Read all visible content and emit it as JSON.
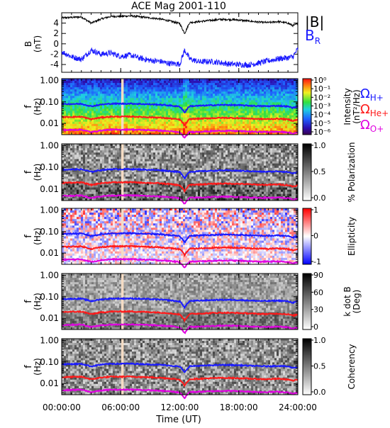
{
  "title": "ACE Mag 2001-110",
  "xlabel": "Time (UT)",
  "x_ticks": [
    "00:00:00",
    "06:00:00",
    "12:00:00",
    "18:00:00",
    "24:00:00"
  ],
  "legend_b": [
    {
      "text": "|B|",
      "color": "#000000"
    },
    {
      "text": "B",
      "sub": "R",
      "color": "#1a1aff"
    }
  ],
  "legend_omega": [
    {
      "text": "Ω",
      "sub": "H+",
      "color": "#1a1aff"
    },
    {
      "text": "Ω",
      "sub": "He+",
      "color": "#ff1a1a"
    },
    {
      "text": "Ω",
      "sub": "O+",
      "color": "#e000e0"
    }
  ],
  "colors": {
    "b_total": "#000000",
    "b_r": "#1a1aff",
    "h_plus": "#1a1aff",
    "he_plus": "#ff1a1a",
    "o_plus": "#e000e0",
    "gap": "#f5dcc4"
  },
  "chart_data": [
    {
      "type": "line",
      "panel": "magnetic-field",
      "ylabel": "B",
      "yunit": "(nT)",
      "ylim": [
        -5.5,
        6
      ],
      "y_ticks": [
        "4",
        "2",
        "0",
        "-2",
        "-4"
      ],
      "x_hours": [
        0,
        1,
        2,
        3,
        4,
        5,
        6,
        7,
        8,
        9,
        10,
        11,
        12,
        12.5,
        13,
        14,
        15,
        16,
        17,
        18,
        19,
        20,
        21,
        22,
        23,
        23.5,
        24
      ],
      "series": [
        {
          "name": "|B|",
          "values": [
            5.0,
            5.1,
            5.2,
            4.0,
            4.8,
            5.3,
            5.3,
            5.4,
            5.2,
            5.0,
            4.8,
            4.4,
            3.9,
            2.0,
            4.1,
            4.3,
            4.5,
            4.7,
            4.7,
            4.6,
            4.4,
            4.2,
            4.1,
            4.3,
            4.0,
            3.5,
            3.9
          ]
        },
        {
          "name": "B_R",
          "values": [
            -1.5,
            -2.5,
            -3.0,
            -1.2,
            -2.0,
            -1.8,
            -2.4,
            -2.2,
            -2.8,
            -3.2,
            -3.4,
            -3.8,
            -3.9,
            -1.2,
            -2.9,
            -3.5,
            -3.4,
            -3.6,
            -3.9,
            -4.0,
            -4.1,
            -3.7,
            -3.3,
            -2.9,
            -2.7,
            -2.5,
            -1.0
          ]
        }
      ]
    },
    {
      "type": "heatmap",
      "panel": "intensity",
      "ylabel": "f",
      "yunit": "(Hz)",
      "ylim": [
        0.003,
        1.2
      ],
      "log_y": true,
      "y_ticks": [
        "1.00",
        "0.10",
        "0.01"
      ],
      "colorbar_label": "Intensity",
      "colorbar_unit": "(nT²/Hz)",
      "colorbar_ticks": [
        "10⁰",
        "10⁻¹",
        "10⁻²",
        "10⁻³",
        "10⁻⁴",
        "10⁻⁵",
        "10⁻⁶"
      ],
      "colorbar_range": [
        1e-06,
        1
      ],
      "log_colorbar": true
    },
    {
      "type": "heatmap",
      "panel": "polarization",
      "ylabel": "f",
      "yunit": "(Hz)",
      "ylim": [
        0.003,
        1.2
      ],
      "log_y": true,
      "y_ticks": [
        "1.00",
        "0.10",
        "0.01"
      ],
      "colorbar_label": "% Polarization",
      "colorbar_ticks": [
        "1.0",
        "0.5",
        "0.0"
      ],
      "colorbar_range": [
        0,
        1
      ]
    },
    {
      "type": "heatmap",
      "panel": "ellipticity",
      "ylabel": "f",
      "yunit": "(Hz)",
      "ylim": [
        0.003,
        1.2
      ],
      "log_y": true,
      "y_ticks": [
        "1.00",
        "0.10",
        "0.01"
      ],
      "colorbar_label": "Ellipticity",
      "colorbar_ticks": [
        "1",
        "0",
        "-1"
      ],
      "colorbar_range": [
        -1,
        1
      ]
    },
    {
      "type": "heatmap",
      "panel": "kdotb",
      "ylabel": "f",
      "yunit": "(Hz)",
      "ylim": [
        0.003,
        1.2
      ],
      "log_y": true,
      "y_ticks": [
        "1.00",
        "0.10",
        "0.01"
      ],
      "colorbar_label": "k dot B",
      "colorbar_unit": "(Deg)",
      "colorbar_ticks": [
        "90",
        "60",
        "30",
        "0"
      ],
      "colorbar_range": [
        0,
        90
      ]
    },
    {
      "type": "heatmap",
      "panel": "coherency",
      "ylabel": "f",
      "yunit": "(Hz)",
      "ylim": [
        0.003,
        1.2
      ],
      "log_y": true,
      "y_ticks": [
        "1.00",
        "0.10",
        "0.01"
      ],
      "colorbar_label": "Coherency",
      "colorbar_ticks": [
        "1.0",
        "0.5",
        "0.0"
      ],
      "colorbar_range": [
        0,
        1
      ]
    },
    {
      "type": "line",
      "panel": "gyrofrequency-overlays",
      "x_hours": [
        0,
        1,
        2,
        3,
        4,
        5,
        6,
        7,
        8,
        9,
        10,
        11,
        12,
        12.5,
        13,
        14,
        15,
        16,
        17,
        18,
        19,
        20,
        21,
        22,
        23,
        23.5,
        24
      ],
      "series": [
        {
          "name": "Ω H+",
          "values": [
            0.078,
            0.08,
            0.081,
            0.062,
            0.075,
            0.082,
            0.082,
            0.083,
            0.08,
            0.077,
            0.074,
            0.068,
            0.06,
            0.031,
            0.063,
            0.066,
            0.069,
            0.072,
            0.072,
            0.07,
            0.067,
            0.064,
            0.063,
            0.066,
            0.061,
            0.053,
            0.06
          ]
        },
        {
          "name": "Ω He+",
          "values": [
            0.0195,
            0.02,
            0.0203,
            0.0155,
            0.0188,
            0.0205,
            0.0205,
            0.0208,
            0.02,
            0.0193,
            0.0185,
            0.017,
            0.015,
            0.0078,
            0.0158,
            0.0165,
            0.0173,
            0.018,
            0.018,
            0.0175,
            0.0168,
            0.016,
            0.0158,
            0.0165,
            0.0153,
            0.0133,
            0.015
          ]
        },
        {
          "name": "Ω O+",
          "values": [
            0.0049,
            0.005,
            0.0051,
            0.0039,
            0.0047,
            0.0051,
            0.0051,
            0.0052,
            0.005,
            0.0048,
            0.0046,
            0.0043,
            0.0038,
            0.002,
            0.004,
            0.0041,
            0.0043,
            0.0045,
            0.0045,
            0.0044,
            0.0042,
            0.004,
            0.004,
            0.0041,
            0.0038,
            0.0033,
            0.0038
          ]
        }
      ],
      "data_gap_hours": [
        6.05,
        6.3
      ]
    }
  ]
}
